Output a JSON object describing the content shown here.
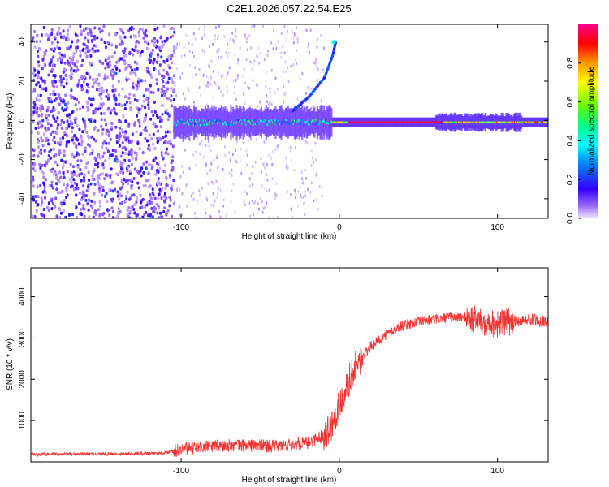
{
  "title": "C2E1.2026.057.22.54.E25",
  "chart_data": [
    {
      "type": "heatmap",
      "name": "spectrogram",
      "xlabel": "Height of straight line (km)",
      "ylabel": "Frequency (Hz)",
      "xlim": [
        -195,
        132
      ],
      "ylim": [
        -50,
        49
      ],
      "xticks": [
        -100,
        0,
        100
      ],
      "yticks": [
        -40,
        -20,
        0,
        20,
        40
      ],
      "colorbar": {
        "label": "Normalized spectral amplitude",
        "range": [
          0,
          1
        ],
        "ticks": [
          "0.0",
          "0.2",
          "0.4",
          "0.6",
          "0.8"
        ],
        "tick_values": [
          0.0,
          0.2,
          0.4,
          0.6,
          0.8
        ]
      },
      "features": [
        {
          "name": "noise-region",
          "x_range": [
            -195,
            -105
          ],
          "y_range": [
            -50,
            49
          ],
          "amplitude": 0.15
        },
        {
          "name": "main-carrier",
          "x_range": [
            -105,
            132
          ],
          "y_center": -1,
          "amplitude_peak": 1.0
        },
        {
          "name": "upper-branch",
          "points": [
            [
              -30,
              5
            ],
            [
              -20,
              12
            ],
            [
              -10,
              22
            ],
            [
              -5,
              33
            ],
            [
              -3,
              40
            ]
          ],
          "amplitude": 0.3
        }
      ]
    },
    {
      "type": "line",
      "name": "snr",
      "xlabel": "Height of straight line (km)",
      "ylabel": "SNR (10 * v/v)",
      "xlim": [
        -195,
        132
      ],
      "ylim": [
        0,
        4700
      ],
      "xticks": [
        -100,
        0,
        100
      ],
      "yticks": [
        1000,
        2000,
        3000,
        4000
      ],
      "color": "#ee3333",
      "series": [
        {
          "name": "SNR",
          "x": [
            -195,
            -160,
            -130,
            -110,
            -100,
            -80,
            -60,
            -40,
            -20,
            -10,
            -5,
            0,
            5,
            10,
            20,
            30,
            40,
            50,
            60,
            70,
            80,
            90,
            100,
            110,
            120,
            132
          ],
          "values": [
            180,
            190,
            200,
            220,
            300,
            380,
            400,
            380,
            450,
            650,
            900,
            1400,
            1900,
            2300,
            2800,
            3100,
            3300,
            3400,
            3450,
            3500,
            3500,
            3400,
            3350,
            3400,
            3450,
            3400
          ]
        }
      ]
    }
  ],
  "colors": {
    "line": "#ee3333",
    "frame": "#000000"
  }
}
